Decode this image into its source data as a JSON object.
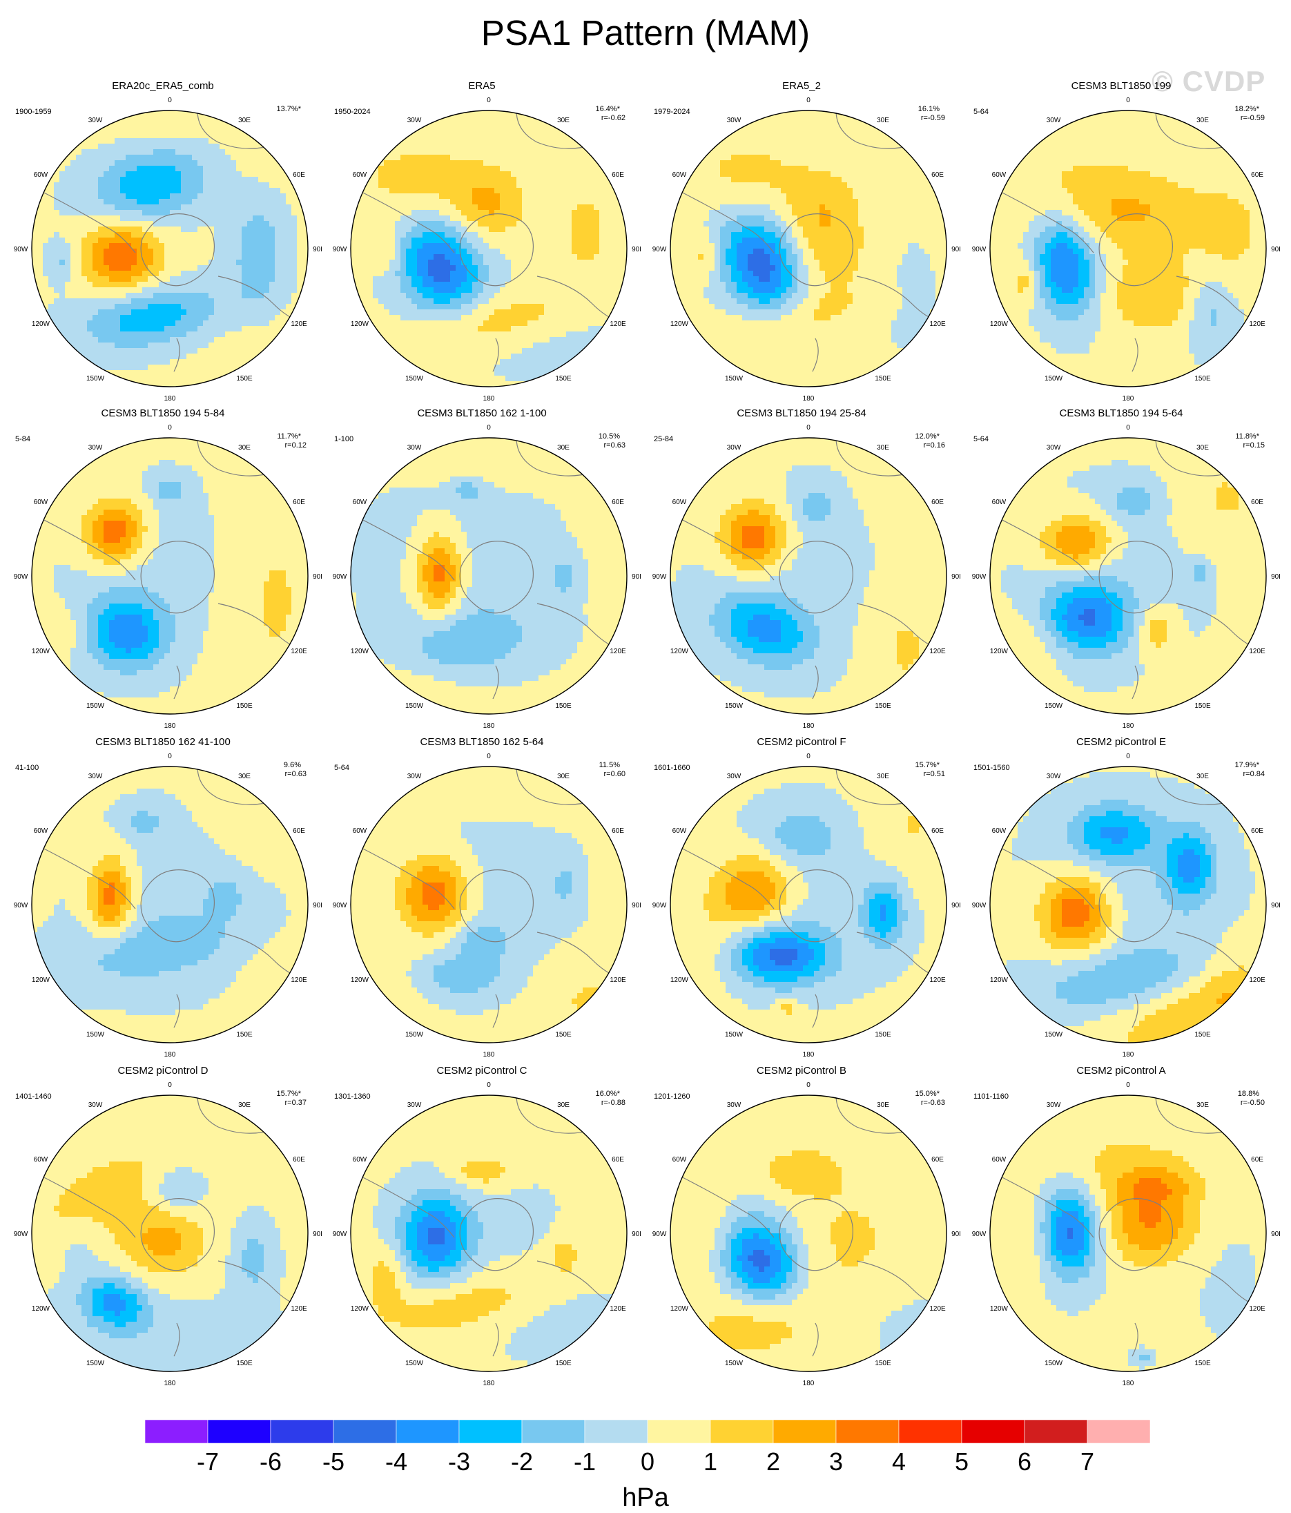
{
  "title": "PSA1 Pattern (MAM)",
  "watermark": "© CVDP",
  "longitude_labels": [
    "0",
    "30E",
    "60E",
    "90E",
    "120E",
    "150E",
    "180",
    "150W",
    "120W",
    "90W",
    "60W",
    "30W"
  ],
  "panels": [
    {
      "title": "ERA20c_ERA5_comb",
      "period": "1900-1959",
      "pct": "13.7%*",
      "r": ""
    },
    {
      "title": "ERA5",
      "period": "1950-2024",
      "pct": "16.4%*",
      "r": "r=-0.62"
    },
    {
      "title": "ERA5_2",
      "period": "1979-2024",
      "pct": "16.1%",
      "r": "r=-0.59"
    },
    {
      "title": "CESM3 BLT1850 199",
      "period": "5-64",
      "pct": "18.2%*",
      "r": "r=-0.59"
    },
    {
      "title": "CESM3 BLT1850 194 5-84",
      "period": "5-84",
      "pct": "11.7%*",
      "r": "r=0.12"
    },
    {
      "title": "CESM3 BLT1850 162 1-100",
      "period": "1-100",
      "pct": "10.5%",
      "r": "r=0.63"
    },
    {
      "title": "CESM3 BLT1850 194 25-84",
      "period": "25-84",
      "pct": "12.0%*",
      "r": "r=0.16"
    },
    {
      "title": "CESM3 BLT1850 194 5-64",
      "period": "5-64",
      "pct": "11.8%*",
      "r": "r=0.15"
    },
    {
      "title": "CESM3 BLT1850 162 41-100",
      "period": "41-100",
      "pct": "9.6%",
      "r": "r=0.63"
    },
    {
      "title": "CESM3 BLT1850 162 5-64",
      "period": "5-64",
      "pct": "11.5%",
      "r": "r=0.60"
    },
    {
      "title": "CESM2 piControl F",
      "period": "1601-1660",
      "pct": "15.7%*",
      "r": "r=0.51"
    },
    {
      "title": "CESM2 piControl E",
      "period": "1501-1560",
      "pct": "17.9%*",
      "r": "r=0.84"
    },
    {
      "title": "CESM2 piControl D",
      "period": "1401-1460",
      "pct": "15.7%*",
      "r": "r=0.37"
    },
    {
      "title": "CESM2 piControl C",
      "period": "1301-1360",
      "pct": "16.0%*",
      "r": "r=-0.88"
    },
    {
      "title": "CESM2 piControl B",
      "period": "1201-1260",
      "pct": "15.0%*",
      "r": "r=-0.63"
    },
    {
      "title": "CESM2 piControl A",
      "period": "1101-1160",
      "pct": "18.8%",
      "r": "r=-0.50"
    }
  ],
  "colorbar": {
    "labels": [
      "-7",
      "-6",
      "-5",
      "-4",
      "-3",
      "-2",
      "-1",
      "0",
      "1",
      "2",
      "3",
      "4",
      "5",
      "6",
      "7"
    ],
    "colors": [
      "#8c1eff",
      "#1e00ff",
      "#2d3ceb",
      "#2d6ee6",
      "#1e96ff",
      "#00c0ff",
      "#78c8f0",
      "#b4dcf0",
      "#fff5a0",
      "#ffd232",
      "#ffaa00",
      "#ff7800",
      "#ff3200",
      "#e60000",
      "#d21e1e",
      "#ffafaf"
    ],
    "units": "hPa"
  },
  "panel_colors": {
    "ocean_neutral": "#b4dcf0",
    "land_line": "#7f7f7f"
  }
}
